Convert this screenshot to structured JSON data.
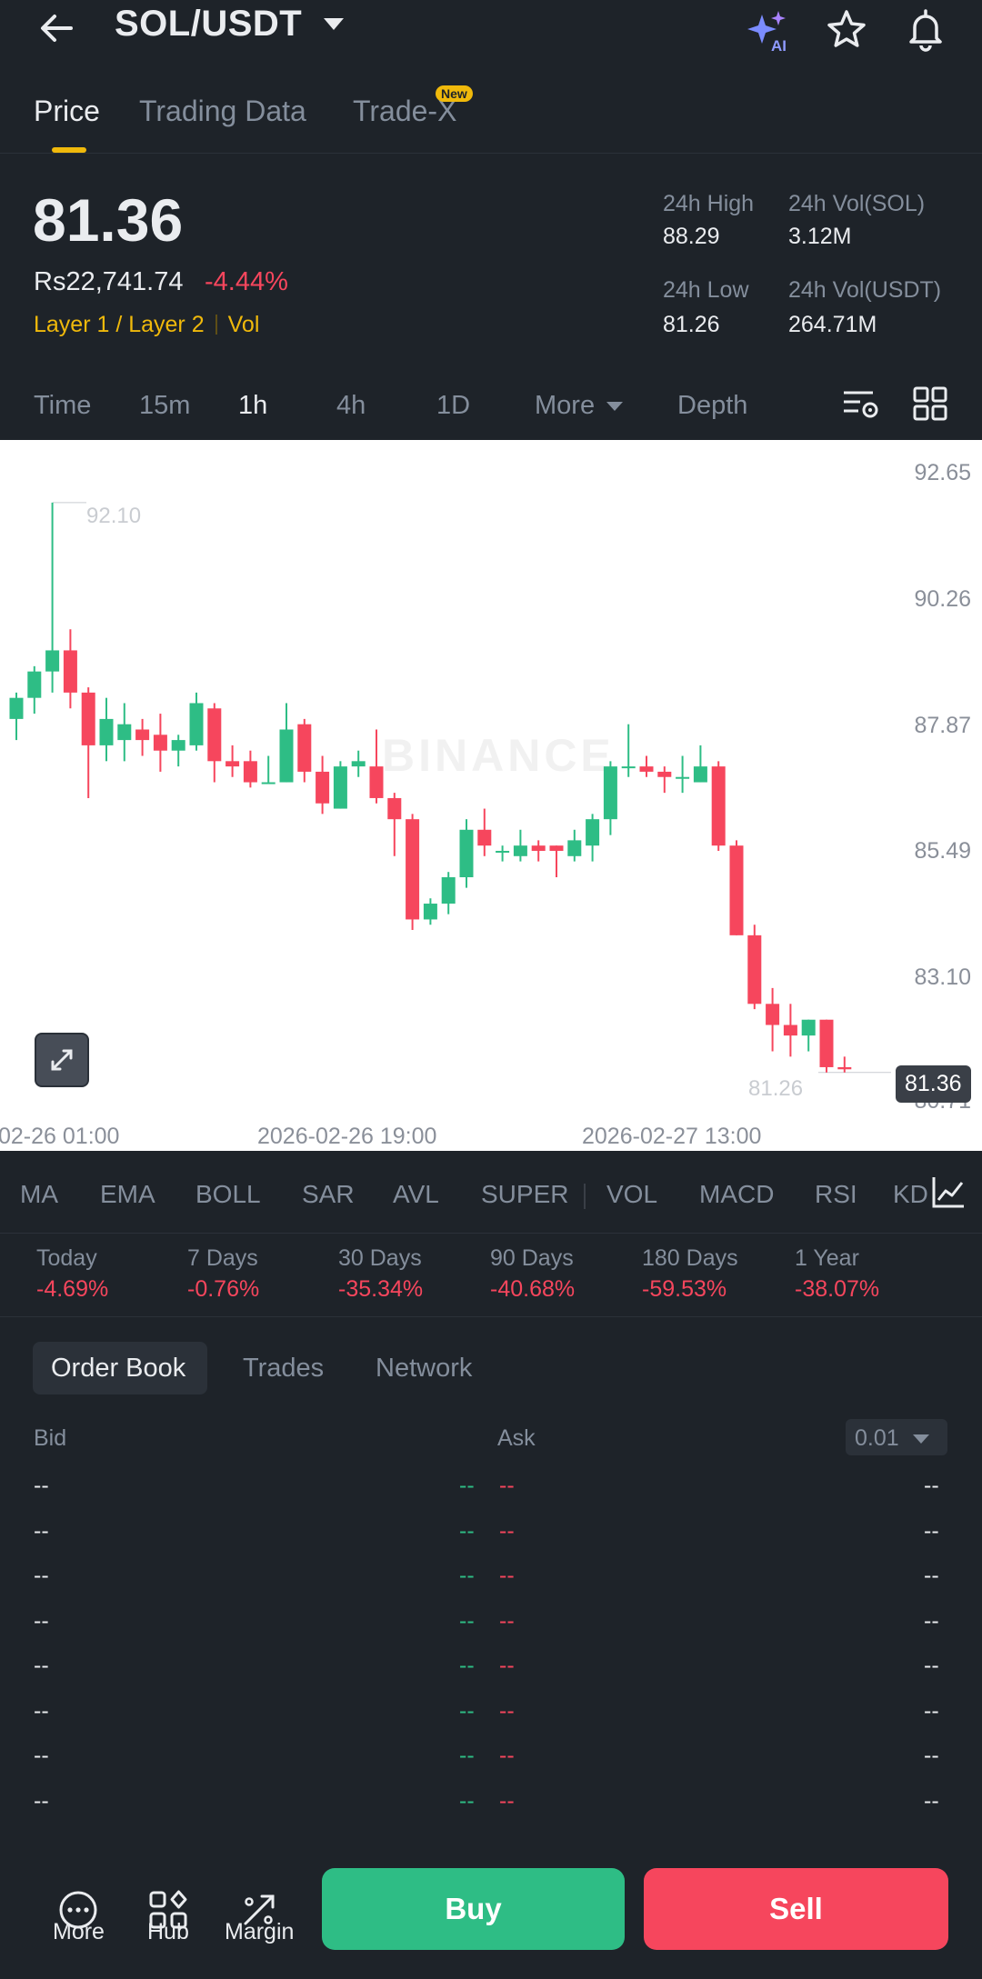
{
  "header": {
    "pair": "SOL/USDT",
    "ai_label": "AI",
    "icons": [
      "back-arrow-icon",
      "chevron-down-icon",
      "ai-sparkle-icon",
      "star-icon",
      "bell-icon"
    ]
  },
  "tabs": [
    {
      "label": "Price",
      "active": true
    },
    {
      "label": "Trading Data",
      "active": false
    },
    {
      "label": "Trade-X",
      "active": false,
      "badge": "New"
    }
  ],
  "ticker": {
    "price": "81.36",
    "local_price": "Rs22,741.74",
    "change": "-4.44%",
    "tag1": "Layer 1 / Layer 2",
    "tag2": "Vol",
    "high_label": "24h High",
    "high_value": "88.29",
    "vol_sol_label": "24h Vol(SOL)",
    "vol_sol_value": "3.12M",
    "low_label": "24h Low",
    "low_value": "81.26",
    "vol_usdt_label": "24h Vol(USDT)",
    "vol_usdt_value": "264.71M"
  },
  "intervals": [
    "Time",
    "15m",
    "1h",
    "4h",
    "1D",
    "More",
    "Depth"
  ],
  "active_interval": "1h",
  "chart_data": {
    "type": "candlestick",
    "y_ticks": [
      "92.65",
      "90.26",
      "87.87",
      "85.49",
      "83.10",
      "80.71"
    ],
    "x_ticks": [
      "02-26 01:00",
      "2026-02-26 19:00",
      "2026-02-27 13:00"
    ],
    "ylim": [
      80.71,
      92.65
    ],
    "last_price": "81.36",
    "high_label": "92.10",
    "low_label": "81.26",
    "watermark": "BINANCE",
    "colors": {
      "up": "#2ebd85",
      "down": "#f6465d"
    },
    "candles": [
      [
        88.0,
        88.5,
        87.6,
        88.4
      ],
      [
        88.4,
        89.0,
        88.1,
        88.9
      ],
      [
        88.9,
        92.1,
        88.5,
        89.3
      ],
      [
        89.3,
        89.7,
        88.2,
        88.5
      ],
      [
        88.5,
        88.6,
        86.5,
        87.5
      ],
      [
        87.5,
        88.4,
        87.2,
        88.0
      ],
      [
        87.6,
        88.3,
        87.2,
        87.9
      ],
      [
        87.8,
        88.0,
        87.3,
        87.6
      ],
      [
        87.7,
        88.1,
        87.0,
        87.4
      ],
      [
        87.4,
        87.7,
        87.1,
        87.6
      ],
      [
        87.5,
        88.5,
        87.4,
        88.3
      ],
      [
        88.2,
        88.3,
        86.8,
        87.2
      ],
      [
        87.2,
        87.5,
        86.9,
        87.1
      ],
      [
        87.2,
        87.4,
        86.7,
        86.8
      ],
      [
        86.8,
        87.3,
        86.8,
        86.8
      ],
      [
        86.8,
        88.3,
        86.8,
        87.8
      ],
      [
        87.9,
        88.0,
        86.8,
        87.0
      ],
      [
        87.0,
        87.3,
        86.2,
        86.4
      ],
      [
        86.3,
        87.2,
        86.3,
        87.1
      ],
      [
        87.1,
        87.4,
        86.9,
        87.2
      ],
      [
        87.1,
        87.8,
        86.4,
        86.5
      ],
      [
        86.5,
        86.6,
        85.4,
        86.1
      ],
      [
        86.1,
        86.2,
        84.0,
        84.2
      ],
      [
        84.2,
        84.6,
        84.1,
        84.5
      ],
      [
        84.5,
        85.1,
        84.3,
        85.0
      ],
      [
        85.0,
        86.1,
        84.8,
        85.9
      ],
      [
        85.9,
        86.3,
        85.4,
        85.6
      ],
      [
        85.5,
        85.6,
        85.3,
        85.5
      ],
      [
        85.4,
        85.9,
        85.3,
        85.6
      ],
      [
        85.6,
        85.7,
        85.3,
        85.5
      ],
      [
        85.6,
        85.6,
        85.0,
        85.5
      ],
      [
        85.4,
        85.9,
        85.3,
        85.7
      ],
      [
        85.6,
        86.2,
        85.3,
        86.1
      ],
      [
        86.1,
        87.2,
        85.8,
        87.1
      ],
      [
        87.1,
        87.9,
        86.9,
        87.1
      ],
      [
        87.1,
        87.3,
        86.9,
        87.0
      ],
      [
        87.0,
        87.1,
        86.6,
        86.9
      ],
      [
        86.9,
        87.3,
        86.6,
        86.9
      ],
      [
        86.8,
        87.5,
        86.8,
        87.1
      ],
      [
        87.1,
        87.2,
        85.5,
        85.6
      ],
      [
        85.6,
        85.7,
        83.9,
        83.9
      ],
      [
        83.9,
        84.1,
        82.5,
        82.6
      ],
      [
        82.6,
        82.9,
        81.7,
        82.2
      ],
      [
        82.2,
        82.6,
        81.6,
        82.0
      ],
      [
        82.0,
        82.3,
        81.7,
        82.3
      ],
      [
        82.3,
        82.3,
        81.3,
        81.4
      ],
      [
        81.4,
        81.6,
        81.3,
        81.36
      ]
    ]
  },
  "indicators": [
    "MA",
    "EMA",
    "BOLL",
    "SAR",
    "AVL",
    "SUPER",
    "VOL",
    "MACD",
    "RSI",
    "KD"
  ],
  "performance": [
    {
      "label": "Today",
      "value": "-4.69%"
    },
    {
      "label": "7 Days",
      "value": "-0.76%"
    },
    {
      "label": "30 Days",
      "value": "-35.34%"
    },
    {
      "label": "90 Days",
      "value": "-40.68%"
    },
    {
      "label": "180 Days",
      "value": "-59.53%"
    },
    {
      "label": "1 Year",
      "value": "-38.07%"
    }
  ],
  "orderbook": {
    "tabs": [
      "Order Book",
      "Trades",
      "Network"
    ],
    "bid_label": "Bid",
    "ask_label": "Ask",
    "precision": "0.01",
    "placeholder": "--",
    "rows": 8
  },
  "bottom_nav": {
    "more": "More",
    "hub": "Hub",
    "margin": "Margin",
    "buy": "Buy",
    "sell": "Sell"
  }
}
